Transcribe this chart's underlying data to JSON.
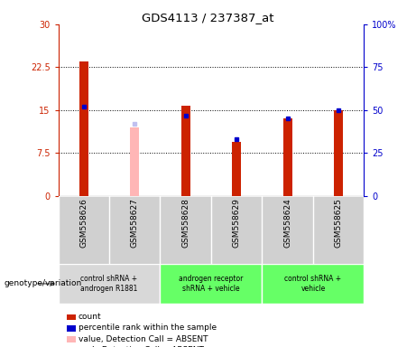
{
  "title": "GDS4113 / 237387_at",
  "samples": [
    "GSM558626",
    "GSM558627",
    "GSM558628",
    "GSM558629",
    "GSM558624",
    "GSM558625"
  ],
  "count_values": [
    23.5,
    null,
    15.8,
    9.5,
    13.5,
    15.0
  ],
  "count_absent_values": [
    null,
    12.0,
    null,
    null,
    null,
    null
  ],
  "rank_values": [
    52,
    null,
    47,
    33,
    45,
    50
  ],
  "rank_absent_values": [
    null,
    42,
    null,
    null,
    null,
    null
  ],
  "ylim_left": [
    0,
    30
  ],
  "ylim_right": [
    0,
    100
  ],
  "yticks_left": [
    0,
    7.5,
    15,
    22.5,
    30
  ],
  "yticks_right": [
    0,
    25,
    50,
    75,
    100
  ],
  "ytick_labels_left": [
    "0",
    "7.5",
    "15",
    "22.5",
    "30"
  ],
  "ytick_labels_right": [
    "0",
    "25",
    "50",
    "75",
    "100%"
  ],
  "bar_width": 0.18,
  "count_color": "#cc2200",
  "count_absent_color": "#ffb6b6",
  "rank_color": "#0000cc",
  "rank_absent_color": "#c0c0f0",
  "genotype_label": "genotype/variation",
  "legend_items": [
    {
      "color": "#cc2200",
      "label": "count"
    },
    {
      "color": "#0000cc",
      "label": "percentile rank within the sample"
    },
    {
      "color": "#ffb6b6",
      "label": "value, Detection Call = ABSENT"
    },
    {
      "color": "#c0c0f0",
      "label": "rank, Detection Call = ABSENT"
    }
  ],
  "group_defs": [
    {
      "indices": [
        0,
        1
      ],
      "label": "control shRNA +\nandrogen R1881",
      "color": "#d8d8d8"
    },
    {
      "indices": [
        2,
        3
      ],
      "label": "androgen receptor\nshRNA + vehicle",
      "color": "#66ff66"
    },
    {
      "indices": [
        4,
        5
      ],
      "label": "control shRNA +\nvehicle",
      "color": "#66ff66"
    }
  ],
  "bg_color": "#ffffff",
  "sample_area_color": "#d0d0d0"
}
